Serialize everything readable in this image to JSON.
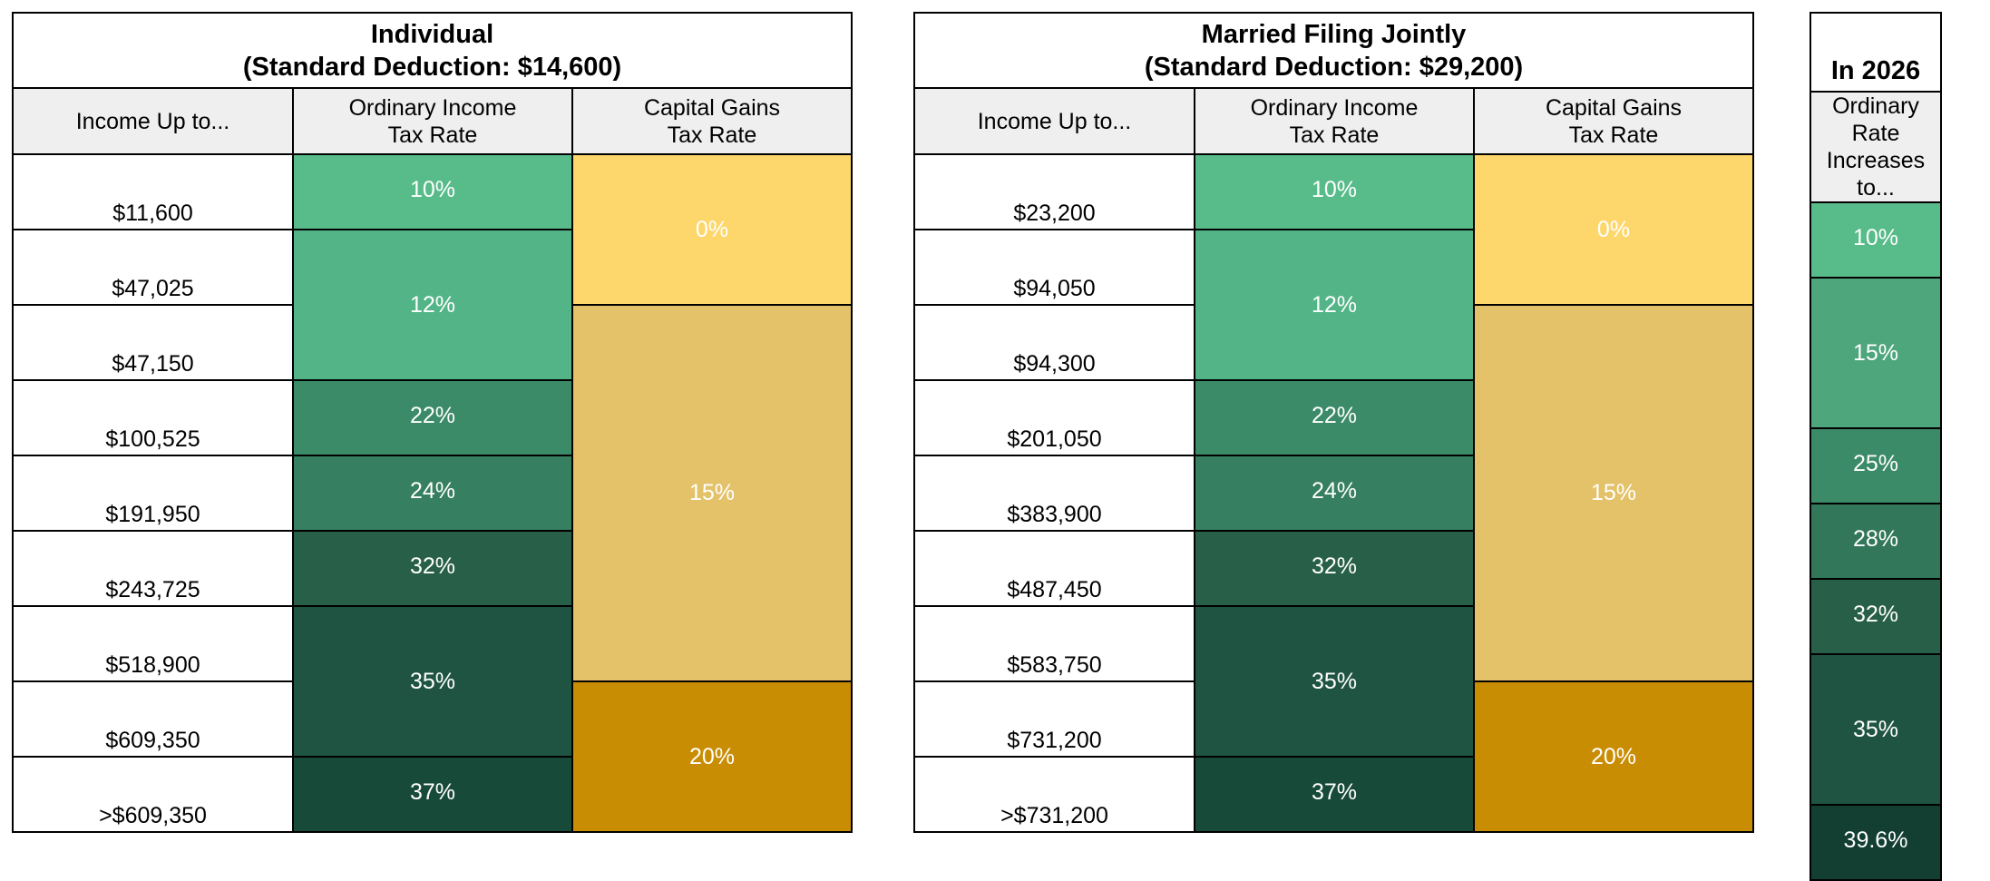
{
  "colors": {
    "green_10": "#57bb8a",
    "green_12": "#53b487",
    "green_15": "#4ea67d",
    "green_22": "#3b8a68",
    "green_24": "#367f60",
    "green_25": "#3b8a68",
    "green_28": "#33775a",
    "green_32": "#285f48",
    "green_35": "#1f5443",
    "green_37": "#184a3a",
    "green_396": "#123f32",
    "cg_0": "#fdd76b",
    "cg_15": "#e3c269",
    "cg_20": "#c98d03"
  },
  "individual": {
    "title_line1": "Individual",
    "title_line2": "(Standard Deduction: $14,600)",
    "col_income": "Income Up to...",
    "col_ord_1": "Ordinary Income",
    "col_ord_2": "Tax Rate",
    "col_cg_1": "Capital Gains",
    "col_cg_2": "Tax Rate",
    "incomes": [
      "$11,600",
      "$47,025",
      "$47,150",
      "$100,525",
      "$191,950",
      "$243,725",
      "$518,900",
      "$609,350",
      ">$609,350"
    ],
    "ordinary": [
      "10%",
      "12%",
      "22%",
      "24%",
      "32%",
      "35%",
      "37%"
    ],
    "cg": [
      "0%",
      "15%",
      "20%"
    ]
  },
  "married": {
    "title_line1": "Married Filing Jointly",
    "title_line2": "(Standard Deduction: $29,200)",
    "col_income": "Income Up to...",
    "col_ord_1": "Ordinary Income",
    "col_ord_2": "Tax Rate",
    "col_cg_1": "Capital Gains",
    "col_cg_2": "Tax Rate",
    "incomes": [
      "$23,200",
      "$94,050",
      "$94,300",
      "$201,050",
      "$383,900",
      "$487,450",
      "$583,750",
      "$731,200",
      ">$731,200"
    ],
    "ordinary": [
      "10%",
      "12%",
      "22%",
      "24%",
      "32%",
      "35%",
      "37%"
    ],
    "cg": [
      "0%",
      "15%",
      "20%"
    ]
  },
  "future": {
    "title": "In 2026",
    "col_1": "Ordinary Rate",
    "col_2": "Increases to...",
    "rates": [
      "10%",
      "15%",
      "25%",
      "28%",
      "32%",
      "35%",
      "39.6%"
    ]
  }
}
